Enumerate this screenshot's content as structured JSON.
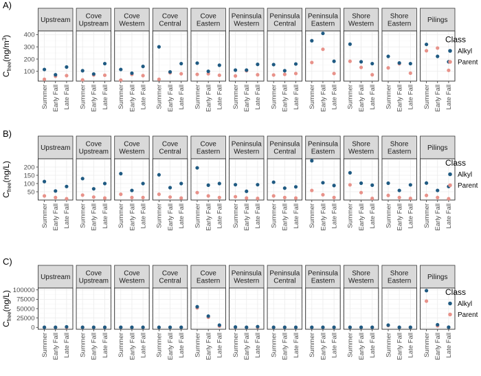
{
  "colors": {
    "Alkyl": "#1f5a82",
    "Parent": "#e8928a"
  },
  "chart_data": [
    {
      "type": "scatter",
      "panel_label": "A)",
      "ylabel_main": "C",
      "ylabel_sub": "free",
      "ylabel_unit": "(ng/m",
      "ylabel_sup": "3",
      "ylabel_close": ")",
      "ylim": [
        20,
        430
      ],
      "yticks": [
        100,
        200,
        300,
        400
      ],
      "ytick_labels": [
        "100",
        "200",
        "300",
        "400"
      ],
      "categories": [
        "Summer",
        "Early Fall",
        "Late Fall"
      ],
      "facets": [
        {
          "name": "Upstream",
          "Alkyl": [
            115,
            72,
            135
          ],
          "Parent": [
            35,
            60,
            65
          ]
        },
        {
          "name": "Cove Upstream",
          "Alkyl": [
            105,
            78,
            163
          ],
          "Parent": [
            30,
            70,
            68
          ]
        },
        {
          "name": "Cove Western",
          "Alkyl": [
            115,
            85,
            140
          ],
          "Parent": [
            28,
            75,
            65
          ]
        },
        {
          "name": "Cove Central",
          "Alkyl": [
            300,
            95,
            163
          ],
          "Parent": [
            35,
            88,
            80
          ]
        },
        {
          "name": "Cove Eastern",
          "Alkyl": [
            167,
            100,
            150
          ],
          "Parent": [
            75,
            80,
            68
          ]
        },
        {
          "name": "Peninsula Western",
          "Alkyl": [
            110,
            110,
            157
          ],
          "Parent": [
            62,
            105,
            72
          ]
        },
        {
          "name": "Peninsula Central",
          "Alkyl": [
            155,
            105,
            160
          ],
          "Parent": [
            70,
            75,
            82
          ]
        },
        {
          "name": "Peninsula Eastern",
          "Alkyl": [
            350,
            410,
            182
          ],
          "Parent": [
            172,
            280,
            82
          ]
        },
        {
          "name": "Shore Western",
          "Alkyl": [
            322,
            178,
            163
          ],
          "Parent": [
            182,
            132,
            72
          ]
        },
        {
          "name": "Shore Eastern",
          "Alkyl": [
            222,
            168,
            163
          ],
          "Parent": [
            128,
            162,
            85
          ]
        },
        {
          "name": "Pilings",
          "Alkyl": [
            320,
            222,
            178
          ],
          "Parent": [
            268,
            290,
            108
          ]
        }
      ]
    },
    {
      "type": "scatter",
      "panel_label": "B)",
      "ylabel_main": "C",
      "ylabel_sub": "free",
      "ylabel_unit": "(ng/L)",
      "ylabel_sup": "",
      "ylabel_close": "",
      "ylim": [
        0,
        250
      ],
      "yticks": [
        50,
        100,
        150,
        200
      ],
      "ytick_labels": [
        "50",
        "100",
        "150",
        "200"
      ],
      "categories": [
        "Summer",
        "Early Fall",
        "Late Fall"
      ],
      "facets": [
        {
          "name": "Upstream",
          "Alkyl": [
            112,
            55,
            82
          ],
          "Parent": [
            25,
            15,
            8
          ]
        },
        {
          "name": "Cove Upstream",
          "Alkyl": [
            130,
            68,
            100
          ],
          "Parent": [
            30,
            18,
            12
          ]
        },
        {
          "name": "Cove Western",
          "Alkyl": [
            160,
            58,
            100
          ],
          "Parent": [
            35,
            15,
            15
          ]
        },
        {
          "name": "Cove Central",
          "Alkyl": [
            153,
            75,
            100
          ],
          "Parent": [
            35,
            18,
            12
          ]
        },
        {
          "name": "Cove Eastern",
          "Alkyl": [
            195,
            90,
            100
          ],
          "Parent": [
            45,
            25,
            15
          ]
        },
        {
          "name": "Peninsula Western",
          "Alkyl": [
            93,
            53,
            93
          ],
          "Parent": [
            20,
            12,
            10
          ]
        },
        {
          "name": "Peninsula Central",
          "Alkyl": [
            108,
            72,
            80
          ],
          "Parent": [
            25,
            15,
            12
          ]
        },
        {
          "name": "Peninsula Eastern",
          "Alkyl": [
            238,
            105,
            88
          ],
          "Parent": [
            58,
            32,
            15
          ]
        },
        {
          "name": "Shore Western",
          "Alkyl": [
            165,
            102,
            90
          ],
          "Parent": [
            92,
            45,
            10
          ]
        },
        {
          "name": "Shore Eastern",
          "Alkyl": [
            102,
            58,
            92
          ],
          "Parent": [
            28,
            15,
            10
          ]
        },
        {
          "name": "Pilings",
          "Alkyl": [
            103,
            58,
            82
          ],
          "Parent": [
            28,
            15,
            8
          ]
        }
      ]
    },
    {
      "type": "scatter",
      "panel_label": "C)",
      "ylabel_main": "C",
      "ylabel_sub": "free",
      "ylabel_unit": "(ng/L)",
      "ylabel_sup": "",
      "ylabel_close": "",
      "ylim": [
        -5000,
        105000
      ],
      "yticks": [
        0,
        25000,
        50000,
        75000,
        100000
      ],
      "ytick_labels": [
        "0",
        "25000",
        "50000",
        "75000",
        "100000"
      ],
      "categories": [
        "Summer",
        "Early Fall",
        "Late Fall"
      ],
      "facets": [
        {
          "name": "Upstream",
          "Alkyl": [
            300,
            300,
            1500
          ],
          "Parent": [
            200,
            200,
            400
          ]
        },
        {
          "name": "Cove Upstream",
          "Alkyl": [
            300,
            300,
            300
          ],
          "Parent": [
            200,
            200,
            200
          ]
        },
        {
          "name": "Cove Western",
          "Alkyl": [
            300,
            300,
            300
          ],
          "Parent": [
            200,
            200,
            200
          ]
        },
        {
          "name": "Cove Central",
          "Alkyl": [
            300,
            300,
            300
          ],
          "Parent": [
            200,
            200,
            200
          ]
        },
        {
          "name": "Cove Eastern",
          "Alkyl": [
            55000,
            30000,
            6000
          ],
          "Parent": [
            52000,
            27000,
            3500
          ]
        },
        {
          "name": "Peninsula Western",
          "Alkyl": [
            1000,
            300,
            2000
          ],
          "Parent": [
            400,
            200,
            600
          ]
        },
        {
          "name": "Peninsula Central",
          "Alkyl": [
            300,
            300,
            300
          ],
          "Parent": [
            200,
            200,
            200
          ]
        },
        {
          "name": "Peninsula Eastern",
          "Alkyl": [
            300,
            300,
            300
          ],
          "Parent": [
            200,
            200,
            200
          ]
        },
        {
          "name": "Shore Western",
          "Alkyl": [
            300,
            300,
            300
          ],
          "Parent": [
            200,
            200,
            200
          ]
        },
        {
          "name": "Shore Eastern",
          "Alkyl": [
            6000,
            300,
            300
          ],
          "Parent": [
            5000,
            200,
            200
          ]
        },
        {
          "name": "Pilings",
          "Alkyl": [
            98000,
            7000,
            500
          ],
          "Parent": [
            70000,
            4000,
            300
          ]
        }
      ]
    }
  ],
  "legend": {
    "title": "Class",
    "entries": [
      "Alkyl",
      "Parent"
    ]
  }
}
